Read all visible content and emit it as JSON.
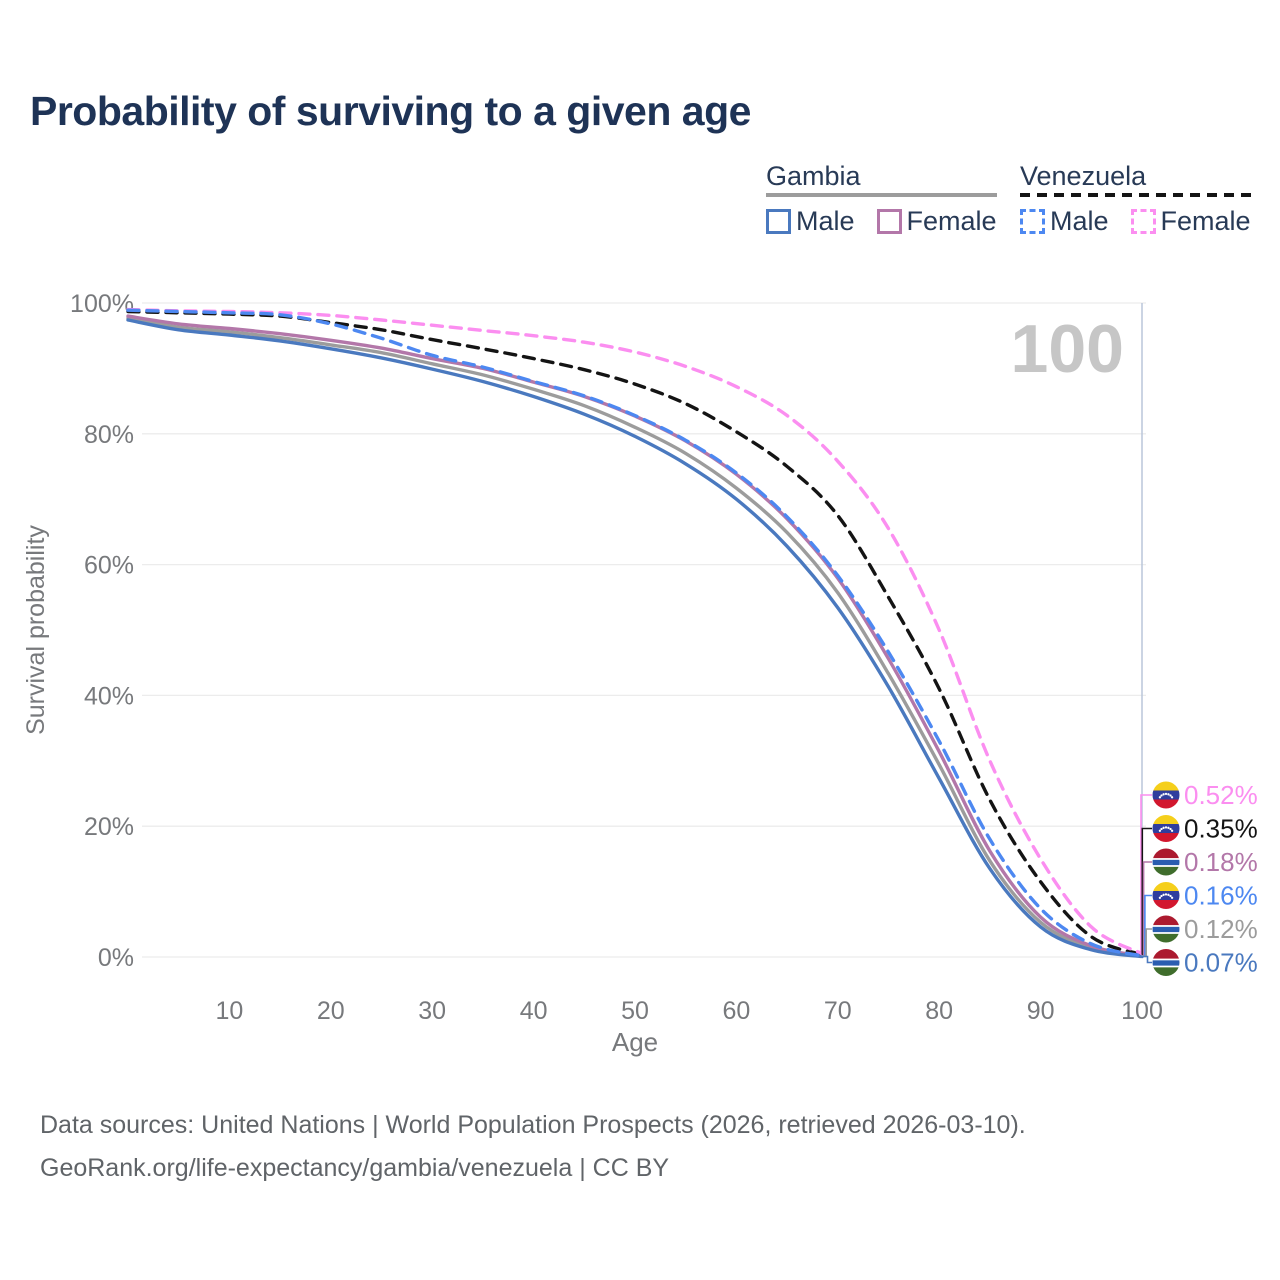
{
  "title": "Probability of surviving to a given age",
  "legend": {
    "groups": [
      {
        "label": "Gambia",
        "line_style": "solid",
        "rule_color": "#9c9c9c",
        "items": [
          {
            "label": "Male",
            "color": "#4a79bf"
          },
          {
            "label": "Female",
            "color": "#b377a9"
          }
        ]
      },
      {
        "label": "Venezuela",
        "line_style": "dashed",
        "rule_color": "#141414",
        "items": [
          {
            "label": "Male",
            "color": "#4d88f1"
          },
          {
            "label": "Female",
            "color": "#fb8ef0"
          }
        ]
      }
    ]
  },
  "footer": {
    "line1": "Data sources: United Nations | World Population Prospects (2026, retrieved 2026-03-10).",
    "line2": "GeoRank.org/life-expectancy/gambia/venezuela | CC BY"
  },
  "chart_data": {
    "type": "line",
    "title": "Probability of surviving to a given age",
    "xlabel": "Age",
    "ylabel": "Survival probability",
    "xlim": [
      0,
      100
    ],
    "ylim": [
      0,
      100
    ],
    "x_ticks": [
      10,
      20,
      30,
      40,
      50,
      60,
      70,
      80,
      90,
      100
    ],
    "y_ticks": [
      0,
      20,
      40,
      60,
      80,
      100
    ],
    "y_tick_labels": [
      "0%",
      "20%",
      "40%",
      "60%",
      "80%",
      "100%"
    ],
    "grid": "horizontal",
    "legend_position": "top-right",
    "current_age_label": "100",
    "current_age": 100,
    "x": [
      0,
      5,
      10,
      15,
      20,
      25,
      30,
      35,
      40,
      45,
      50,
      55,
      60,
      65,
      70,
      75,
      80,
      85,
      90,
      95,
      100
    ],
    "series": [
      {
        "name": "Gambia Total",
        "country": "gambia",
        "flag": "gambia-flag-icon",
        "color": "#9c9c9c",
        "dash": false,
        "values": [
          97.7,
          96.3,
          95.6,
          94.7,
          93.6,
          92.4,
          90.7,
          89.0,
          86.8,
          84.3,
          81.0,
          77.0,
          71.7,
          64.9,
          55.7,
          43.3,
          29.4,
          14.7,
          5.3,
          1.4,
          0.12
        ],
        "end_label": "0.12%"
      },
      {
        "name": "Gambia Female",
        "country": "gambia",
        "flag": "gambia-flag-icon",
        "color": "#b377a9",
        "dash": false,
        "values": [
          98.0,
          96.8,
          96.1,
          95.3,
          94.3,
          93.1,
          91.5,
          90.0,
          87.9,
          85.7,
          82.7,
          78.9,
          73.8,
          67.0,
          57.9,
          45.6,
          31.4,
          16.2,
          6.1,
          1.7,
          0.18
        ],
        "end_label": "0.18%"
      },
      {
        "name": "Gambia Male",
        "country": "gambia",
        "flag": "gambia-flag-icon",
        "color": "#4a79bf",
        "dash": false,
        "values": [
          97.4,
          95.9,
          95.1,
          94.2,
          93.0,
          91.6,
          89.9,
          88.0,
          85.7,
          83.0,
          79.6,
          75.4,
          70.0,
          62.8,
          53.4,
          41.3,
          27.3,
          13.5,
          4.6,
          1.1,
          0.07
        ],
        "end_label": "0.07%"
      },
      {
        "name": "Venezuela Total",
        "country": "venezuela",
        "flag": "venezuela-flag-icon",
        "color": "#141414",
        "dash": true,
        "values": [
          98.7,
          98.5,
          98.3,
          98.0,
          97.0,
          95.9,
          94.4,
          93.0,
          91.5,
          89.8,
          87.6,
          84.6,
          80.3,
          75.0,
          67.5,
          55.0,
          41.0,
          24.0,
          11.5,
          3.1,
          0.35
        ],
        "end_label": "0.35%"
      },
      {
        "name": "Venezuela Female",
        "country": "venezuela",
        "flag": "venezuela-flag-icon",
        "color": "#fb8ef0",
        "dash": true,
        "values": [
          99.0,
          98.8,
          98.7,
          98.5,
          98.1,
          97.4,
          96.6,
          95.8,
          95.0,
          94.0,
          92.5,
          90.3,
          87.2,
          82.8,
          75.8,
          65.5,
          50.0,
          30.0,
          15.0,
          4.6,
          0.52
        ],
        "end_label": "0.52%"
      },
      {
        "name": "Venezuela Male",
        "country": "venezuela",
        "flag": "venezuela-flag-icon",
        "color": "#4d88f1",
        "dash": true,
        "values": [
          98.9,
          98.7,
          98.5,
          98.2,
          96.8,
          94.6,
          92.0,
          90.2,
          88.0,
          85.8,
          82.8,
          79.0,
          74.0,
          67.3,
          58.3,
          46.6,
          33.0,
          18.0,
          7.4,
          2.0,
          0.16
        ],
        "end_label": "0.16%"
      }
    ],
    "flag_colors": {
      "venezuela": {
        "yellow": "#F5CF1B",
        "blue": "#2F3E9E",
        "red": "#D2172E",
        "stars": "#ffffff"
      },
      "gambia": {
        "red": "#AC1A2F",
        "white": "#ffffff",
        "blue": "#2A5DB0",
        "green": "#3F6D2C"
      }
    },
    "style_colors": {
      "grid": "#ececec",
      "axis_text": "#77797c",
      "watermark": "#c6c6c6",
      "age_marker_line": "#bac6da"
    }
  }
}
